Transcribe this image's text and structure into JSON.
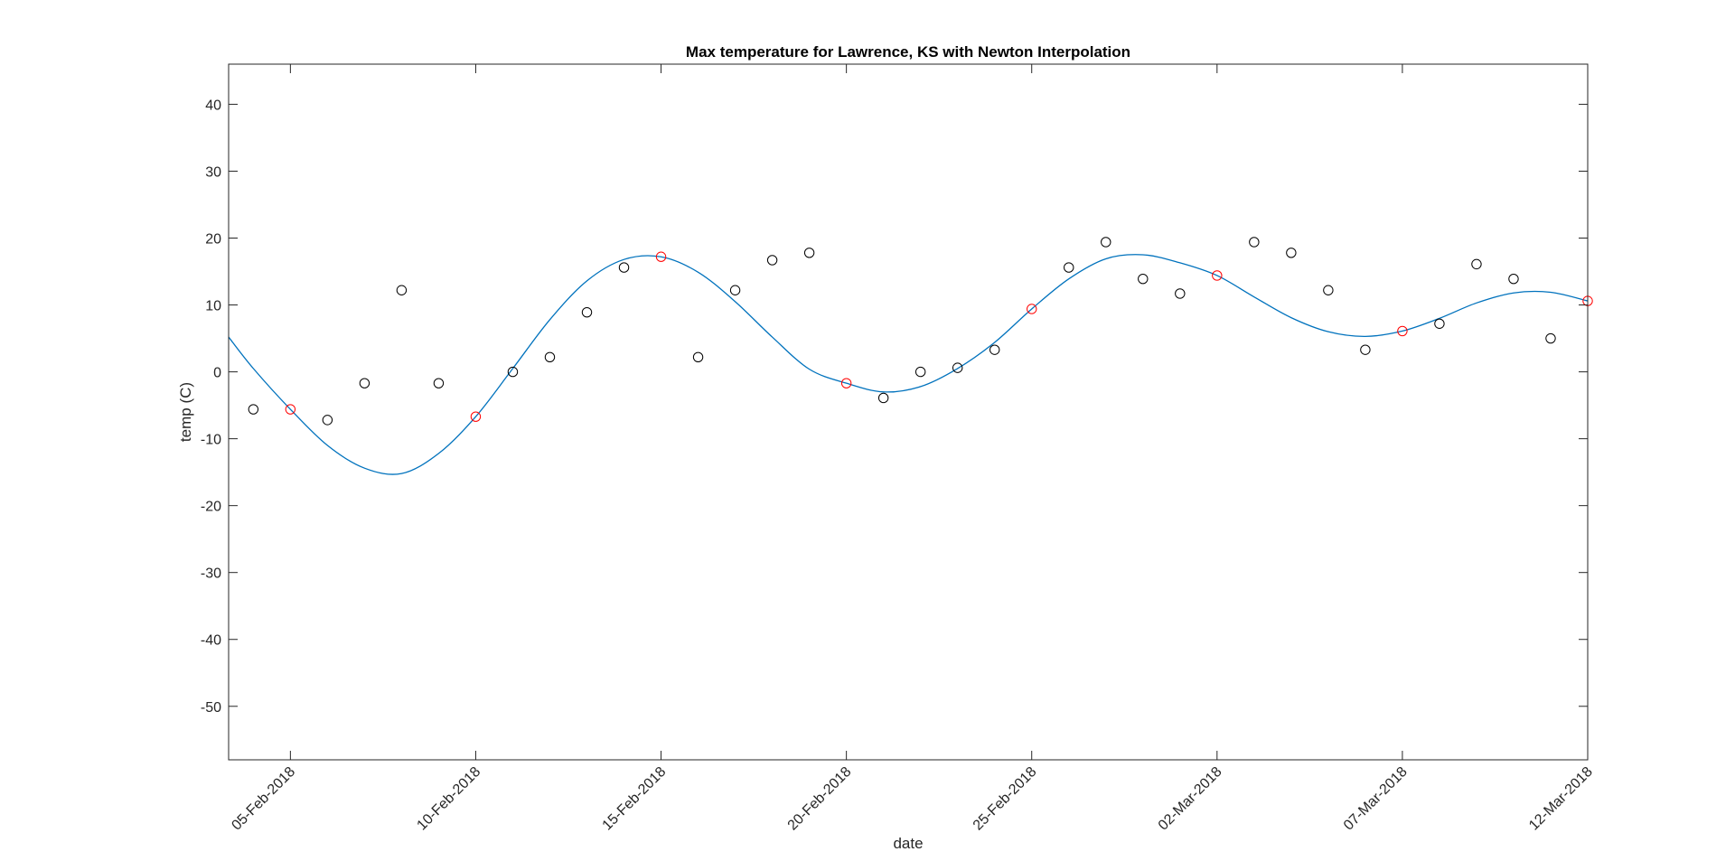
{
  "chart_data": {
    "type": "scatter",
    "title": "Max temperature for Lawrence, KS with Newton Interpolation",
    "xlabel": "date",
    "ylabel": "temp (C)",
    "xlim": [
      "2018-02-03T08:00",
      "2018-03-12T00:00"
    ],
    "ylim": [
      -58,
      46
    ],
    "yticks": [
      -50,
      -40,
      -30,
      -20,
      -10,
      0,
      10,
      20,
      30,
      40
    ],
    "xticks": [
      "2018-02-05",
      "2018-02-10",
      "2018-02-15",
      "2018-02-20",
      "2018-02-25",
      "2018-03-02",
      "2018-03-07",
      "2018-03-12"
    ],
    "xtick_labels": [
      "05-Feb-2018",
      "10-Feb-2018",
      "15-Feb-2018",
      "20-Feb-2018",
      "25-Feb-2018",
      "02-Mar-2018",
      "07-Mar-2018",
      "12-Mar-2018"
    ],
    "grid": false,
    "series": [
      {
        "kind": "markers",
        "marker": "circle-open",
        "color": "#000000",
        "x": [
          "2018-02-04",
          "2018-02-06",
          "2018-02-07",
          "2018-02-08",
          "2018-02-09",
          "2018-02-11",
          "2018-02-12",
          "2018-02-13",
          "2018-02-14",
          "2018-02-16",
          "2018-02-17",
          "2018-02-18",
          "2018-02-19",
          "2018-02-21",
          "2018-02-22",
          "2018-02-23",
          "2018-02-24",
          "2018-02-26",
          "2018-02-27",
          "2018-02-28",
          "2018-03-01",
          "2018-03-03",
          "2018-03-04",
          "2018-03-05",
          "2018-03-06",
          "2018-03-08",
          "2018-03-09",
          "2018-03-10",
          "2018-03-11"
        ],
        "y": [
          -5.6,
          -7.2,
          -1.7,
          12.2,
          -1.7,
          0,
          2.2,
          8.9,
          15.6,
          2.2,
          12.2,
          16.7,
          17.8,
          -3.9,
          0,
          0.6,
          3.3,
          15.6,
          19.4,
          13.9,
          11.7,
          19.4,
          17.8,
          12.2,
          3.3,
          7.2,
          16.1,
          13.9,
          5.0
        ]
      },
      {
        "kind": "markers",
        "marker": "circle-open",
        "color": "#ff0000",
        "x": [
          "2018-02-05",
          "2018-02-10",
          "2018-02-15",
          "2018-02-20",
          "2018-02-25",
          "2018-03-02",
          "2018-03-07",
          "2018-03-12"
        ],
        "y": [
          -5.6,
          -6.7,
          17.2,
          -1.7,
          9.4,
          14.4,
          6.1,
          10.6
        ]
      },
      {
        "kind": "line",
        "color": "#0072bd",
        "x": [
          "2018-02-03T08:00",
          "2018-02-04",
          "2018-02-05",
          "2018-02-06",
          "2018-02-07",
          "2018-02-08",
          "2018-02-09",
          "2018-02-10",
          "2018-02-11",
          "2018-02-12",
          "2018-02-13",
          "2018-02-14",
          "2018-02-15",
          "2018-02-16",
          "2018-02-17",
          "2018-02-18",
          "2018-02-19",
          "2018-02-20",
          "2018-02-21",
          "2018-02-22",
          "2018-02-23",
          "2018-02-24",
          "2018-02-25",
          "2018-02-26",
          "2018-02-27",
          "2018-02-28",
          "2018-03-01",
          "2018-03-02",
          "2018-03-03",
          "2018-03-04",
          "2018-03-05",
          "2018-03-06",
          "2018-03-07",
          "2018-03-08",
          "2018-03-09",
          "2018-03-10",
          "2018-03-11",
          "2018-03-12"
        ],
        "y": [
          5.2,
          0.5,
          -5.6,
          -11.0,
          -14.4,
          -15.2,
          -12.2,
          -6.7,
          0.5,
          7.8,
          13.6,
          16.8,
          17.2,
          14.9,
          10.5,
          5.2,
          0.4,
          -1.7,
          -3.0,
          -2.2,
          0.5,
          4.4,
          9.4,
          13.9,
          16.9,
          17.5,
          16.3,
          14.4,
          11.2,
          8.1,
          6.0,
          5.3,
          6.1,
          8.0,
          10.3,
          11.8,
          11.9,
          10.6
        ]
      }
    ]
  }
}
